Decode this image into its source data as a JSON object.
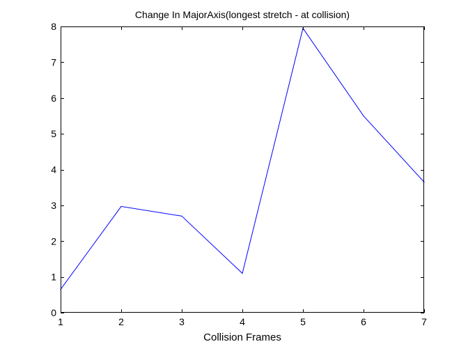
{
  "chart_data": {
    "type": "line",
    "title": "Change In MajorAxis(longest stretch - at collision)",
    "xlabel": "Collision Frames",
    "ylabel": "",
    "x": [
      1,
      2,
      3,
      4,
      5,
      6,
      7
    ],
    "series": [
      {
        "values": [
          0.65,
          2.97,
          2.7,
          1.1,
          7.95,
          5.5,
          3.65
        ]
      }
    ],
    "xlim": [
      1,
      7
    ],
    "ylim": [
      0,
      8
    ],
    "xticks": [
      1,
      2,
      3,
      4,
      5,
      6,
      7
    ],
    "yticks": [
      0,
      1,
      2,
      3,
      4,
      5,
      6,
      7,
      8
    ],
    "grid": false,
    "colors": {
      "line": "#0000ff",
      "axes": "#000000",
      "background": "#ffffff"
    }
  }
}
